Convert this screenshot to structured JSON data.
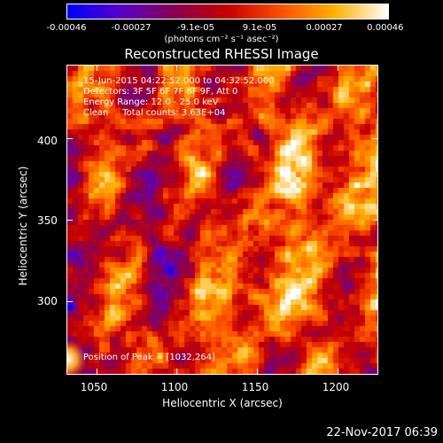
{
  "colorbar": {
    "ticks": [
      "-0.00046",
      "-0.00027",
      "-9.1e-05",
      "9.1e-05",
      "0.00027",
      "0.00046"
    ],
    "units": "(photons cm⁻² s⁻¹ asec⁻²)",
    "colormap": [
      "#0000ff",
      "#5a00c8",
      "#8a0050",
      "#c80000",
      "#ff5000",
      "#ffb000",
      "#ffffff"
    ]
  },
  "chart_data": {
    "type": "heatmap",
    "title": "Reconstructed RHESSI Image",
    "xlabel": "Heliocentric X (arcsec)",
    "ylabel": "Heliocentric Y (arcsec)",
    "xlim": [
      1032,
      1225
    ],
    "ylim": [
      255,
      445
    ],
    "x_ticks": [
      "1050",
      "1100",
      "1150",
      "1200"
    ],
    "x_tick_values": [
      1050,
      1100,
      1150,
      1200
    ],
    "y_ticks": [
      "300",
      "350",
      "400"
    ],
    "y_tick_values": [
      300,
      350,
      400
    ],
    "value_range": [
      -0.00046,
      0.00046
    ],
    "peak": [
      1032,
      264
    ],
    "annotations": {
      "time": "15-Jun-2015 04:22:52.000 to 04:32:52.000",
      "detectors": "Detectors: 3F 5F 6F 7F 8F 9F, Att 0",
      "energy": "Energy Range: 12.0 - 25.0 keV",
      "method": "Clean     Total counts: 3.63E+04",
      "peak_text": "Position of Peak = [1032,264]"
    }
  },
  "timestamp": "22-Nov-2017 06:39"
}
